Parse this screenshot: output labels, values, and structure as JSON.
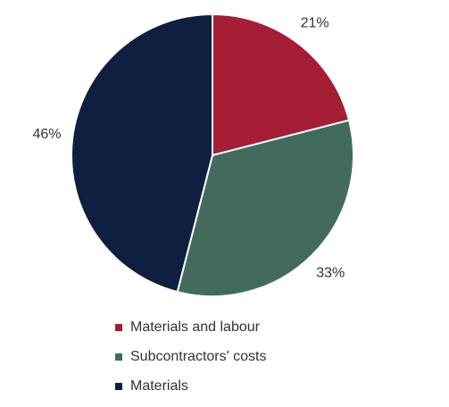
{
  "chart_data": {
    "type": "pie",
    "categories": [
      "Materials and labour",
      "Subcontractors' costs",
      "Materials"
    ],
    "values": [
      21,
      33,
      46
    ],
    "value_labels": [
      "21%",
      "33%",
      "46%"
    ],
    "colors": [
      "#a51e36",
      "#426b5d",
      "#0e1f40"
    ]
  }
}
